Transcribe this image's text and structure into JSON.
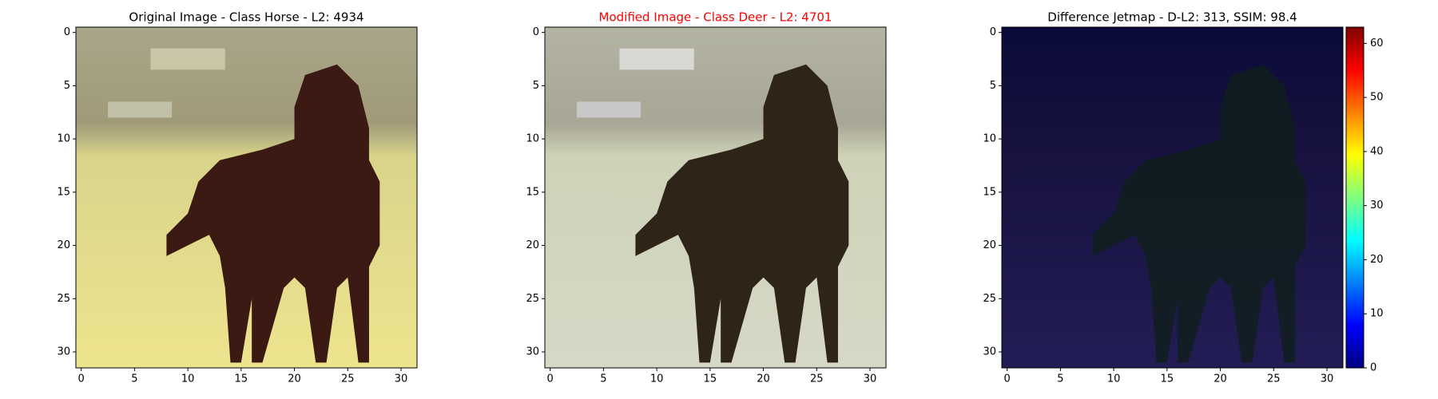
{
  "chart_data": [
    {
      "type": "image",
      "title": "Original Image - Class Horse - L2: 4934",
      "title_color": "#000000",
      "xlim": [
        -0.5,
        31.5
      ],
      "ylim": [
        31.5,
        -0.5
      ],
      "xticks": [
        0,
        5,
        10,
        15,
        20,
        25,
        30
      ],
      "yticks": [
        0,
        5,
        10,
        15,
        20,
        25,
        30
      ]
    },
    {
      "type": "image",
      "title": "Modified Image - Class Deer - L2: 4701",
      "title_color": "#ff0000",
      "xlim": [
        -0.5,
        31.5
      ],
      "ylim": [
        31.5,
        -0.5
      ],
      "xticks": [
        0,
        5,
        10,
        15,
        20,
        25,
        30
      ],
      "yticks": [
        0,
        5,
        10,
        15,
        20,
        25,
        30
      ]
    },
    {
      "type": "image",
      "title": "Difference Jetmap - D-L2: 313, SSIM: 98.4",
      "title_color": "#000000",
      "xlim": [
        -0.5,
        31.5
      ],
      "ylim": [
        31.5,
        -0.5
      ],
      "xticks": [
        0,
        5,
        10,
        15,
        20,
        25,
        30
      ],
      "yticks": [
        0,
        5,
        10,
        15,
        20,
        25,
        30
      ],
      "colorbar": {
        "colormap": "jet",
        "lim": [
          0,
          63
        ],
        "ticks": [
          0,
          10,
          20,
          30,
          40,
          50,
          60
        ]
      }
    }
  ]
}
